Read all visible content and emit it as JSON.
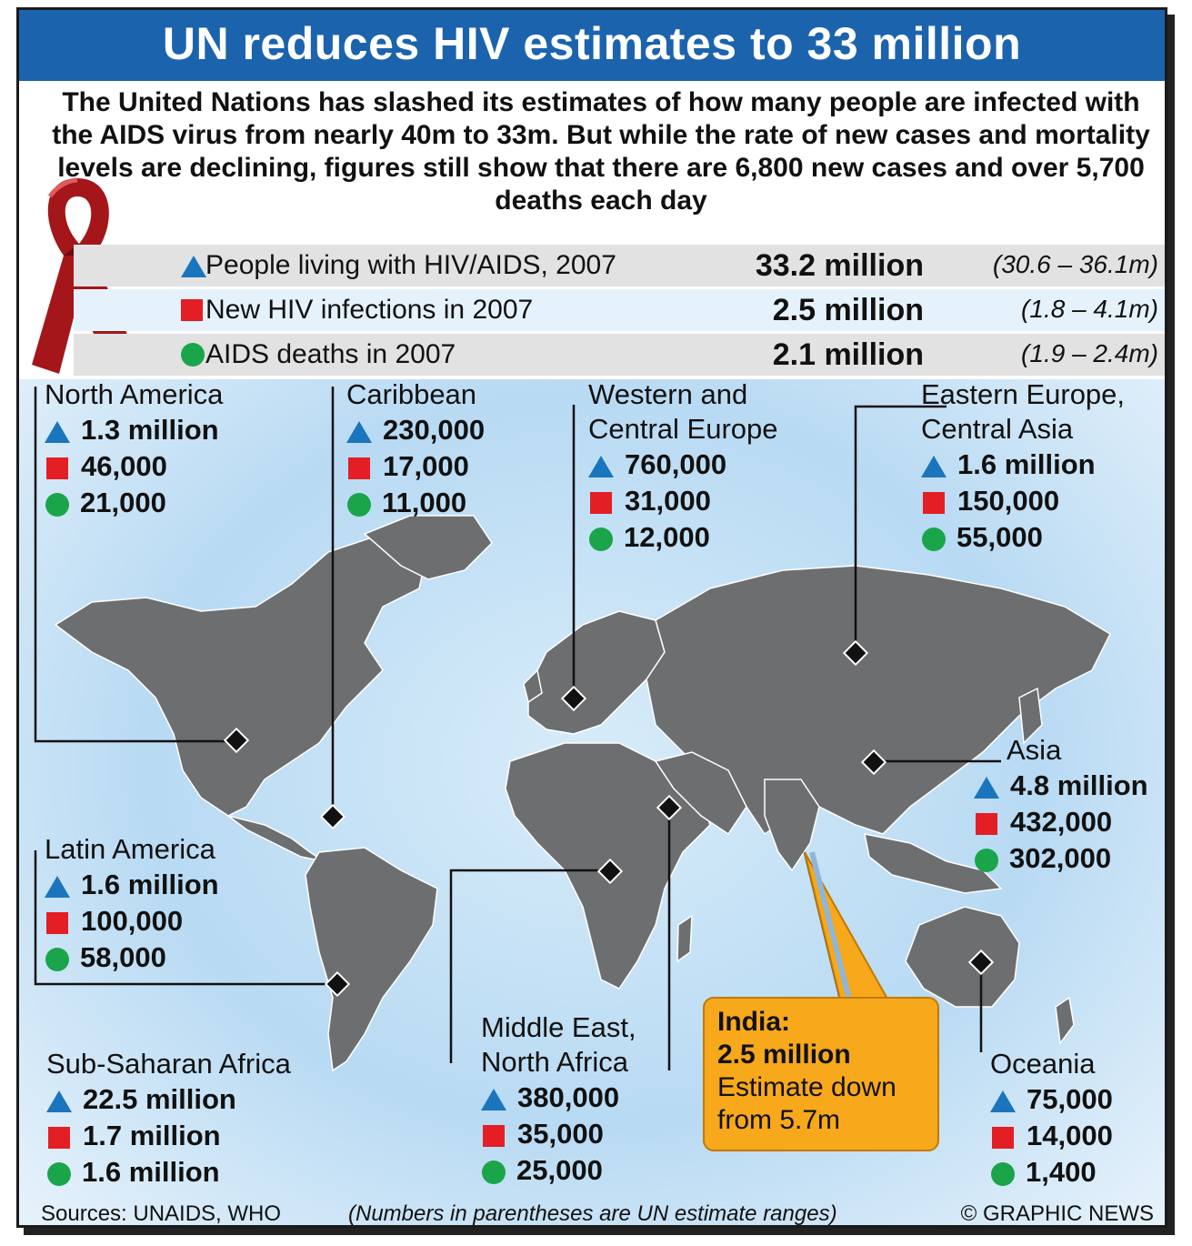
{
  "title": "UN reduces HIV estimates to 33 million",
  "intro": "The United Nations has slashed its estimates of how many people are infected with the AIDS virus from nearly 40m to 33m. But while the rate of new cases and mortality levels are declining, figures still show that there are 6,800 new cases and over 5,700 deaths each day",
  "summary": [
    {
      "label": "People living with HIV/AIDS, 2007",
      "value": "33.2 million",
      "range": "(30.6 – 36.1m)",
      "icon": "triangle-icon"
    },
    {
      "label": "New HIV infections in 2007",
      "value": "2.5 million",
      "range": "(1.8 – 4.1m)",
      "icon": "square-icon"
    },
    {
      "label": "AIDS deaths in 2007",
      "value": "2.1 million",
      "range": "(1.9 – 2.4m)",
      "icon": "circle-icon"
    }
  ],
  "regions": {
    "north_america": {
      "name": [
        "North America"
      ],
      "living": "1.3 million",
      "new": "46,000",
      "deaths": "21,000"
    },
    "caribbean": {
      "name": [
        "Caribbean"
      ],
      "living": "230,000",
      "new": "17,000",
      "deaths": "11,000"
    },
    "western_europe": {
      "name": [
        "Western and",
        "Central Europe"
      ],
      "living": "760,000",
      "new": "31,000",
      "deaths": "12,000"
    },
    "eastern_europe": {
      "name": [
        "Eastern Europe,",
        "Central Asia"
      ],
      "living": "1.6 million",
      "new": "150,000",
      "deaths": "55,000"
    },
    "asia": {
      "name": [
        "Asia"
      ],
      "living": "4.8 million",
      "new": "432,000",
      "deaths": "302,000"
    },
    "latin_america": {
      "name": [
        "Latin America"
      ],
      "living": "1.6 million",
      "new": "100,000",
      "deaths": "58,000"
    },
    "sub_saharan_africa": {
      "name": [
        "Sub-Saharan Africa"
      ],
      "living": "22.5 million",
      "new": "1.7 million",
      "deaths": "1.6 million"
    },
    "middle_east": {
      "name": [
        "Middle East,",
        "North Africa"
      ],
      "living": "380,000",
      "new": "35,000",
      "deaths": "25,000"
    },
    "oceania": {
      "name": [
        "Oceania"
      ],
      "living": "75,000",
      "new": "14,000",
      "deaths": "1,400"
    }
  },
  "india": {
    "title": "India:",
    "value": "2.5 million",
    "note1": "Estimate down",
    "note2": "from 5.7m"
  },
  "footer": {
    "sources": "Sources: UNAIDS, WHO",
    "note": "(Numbers in parentheses are UN estimate ranges)",
    "credit": "© GRAPHIC NEWS"
  },
  "colors": {
    "title_bar": "#1b64ad",
    "triangle": "#1b75bc",
    "square": "#e31e24",
    "circle": "#1aa54b",
    "land": "#6d6e70",
    "callout": "#f7a81b",
    "ribbon": "#a4161a"
  }
}
